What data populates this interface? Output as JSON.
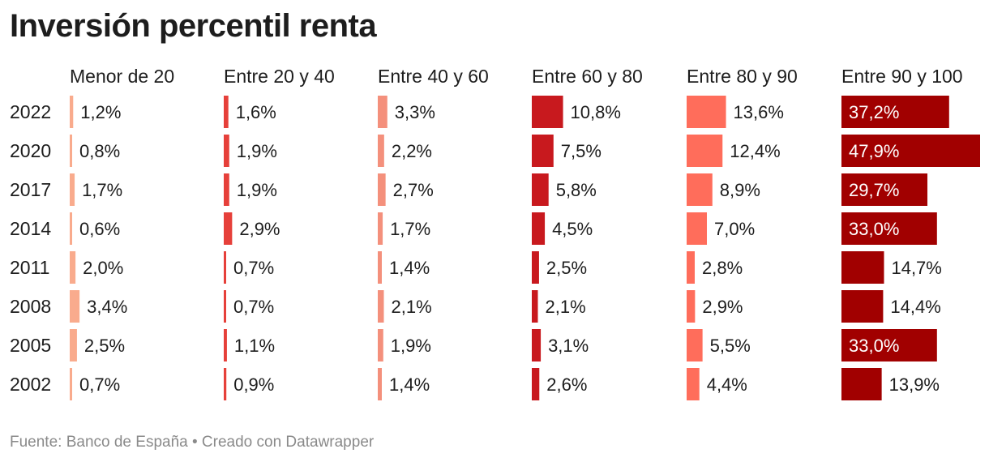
{
  "title": "Inversión percentil renta",
  "source": "Fuente: Banco de España • Creado con Datawrapper",
  "colors": {
    "Menor de 20": "#f9ab8d",
    "Entre 20 y 40": "#e6403a",
    "Entre 40 y 60": "#f4907c",
    "Entre 60 y 80": "#c8191e",
    "Entre 80 y 90": "#ff6d5b",
    "Entre 90 y 100": "#a10000"
  },
  "chart_data": {
    "type": "bar",
    "orientation": "horizontal",
    "layout": "small-multiples",
    "unit": "%",
    "categories": [
      "2022",
      "2020",
      "2017",
      "2014",
      "2011",
      "2008",
      "2005",
      "2002"
    ],
    "series": [
      {
        "name": "Menor de 20",
        "values": [
          1.2,
          0.8,
          1.7,
          0.6,
          2.0,
          3.4,
          2.5,
          0.7
        ],
        "labels": [
          "1,2%",
          "0,8%",
          "1,7%",
          "0,6%",
          "2,0%",
          "3,4%",
          "2,5%",
          "0,7%"
        ]
      },
      {
        "name": "Entre 20 y 40",
        "values": [
          1.6,
          1.9,
          1.9,
          2.9,
          0.7,
          0.7,
          1.1,
          0.9
        ],
        "labels": [
          "1,6%",
          "1,9%",
          "1,9%",
          "2,9%",
          "0,7%",
          "0,7%",
          "1,1%",
          "0,9%"
        ]
      },
      {
        "name": "Entre 40 y 60",
        "values": [
          3.3,
          2.2,
          2.7,
          1.7,
          1.4,
          2.1,
          1.9,
          1.4
        ],
        "labels": [
          "3,3%",
          "2,2%",
          "2,7%",
          "1,7%",
          "1,4%",
          "2,1%",
          "1,9%",
          "1,4%"
        ]
      },
      {
        "name": "Entre 60 y 80",
        "values": [
          10.8,
          7.5,
          5.8,
          4.5,
          2.5,
          2.1,
          3.1,
          2.6
        ],
        "labels": [
          "10,8%",
          "7,5%",
          "5,8%",
          "4,5%",
          "2,5%",
          "2,1%",
          "3,1%",
          "2,6%"
        ]
      },
      {
        "name": "Entre 80 y 90",
        "values": [
          13.6,
          12.4,
          8.9,
          7.0,
          2.8,
          2.9,
          5.5,
          4.4
        ],
        "labels": [
          "13,6%",
          "12,4%",
          "8,9%",
          "7,0%",
          "2,8%",
          "2,9%",
          "5,5%",
          "4,4%"
        ]
      },
      {
        "name": "Entre 90 y 100",
        "values": [
          37.2,
          47.9,
          29.7,
          33.0,
          14.7,
          14.4,
          33.0,
          13.9
        ],
        "labels": [
          "37,2%",
          "47,9%",
          "29,7%",
          "33,0%",
          "14,7%",
          "14,4%",
          "33,0%",
          "13,9%"
        ]
      }
    ],
    "xlim": [
      0,
      47.9
    ],
    "legend": "none",
    "grid": false
  }
}
